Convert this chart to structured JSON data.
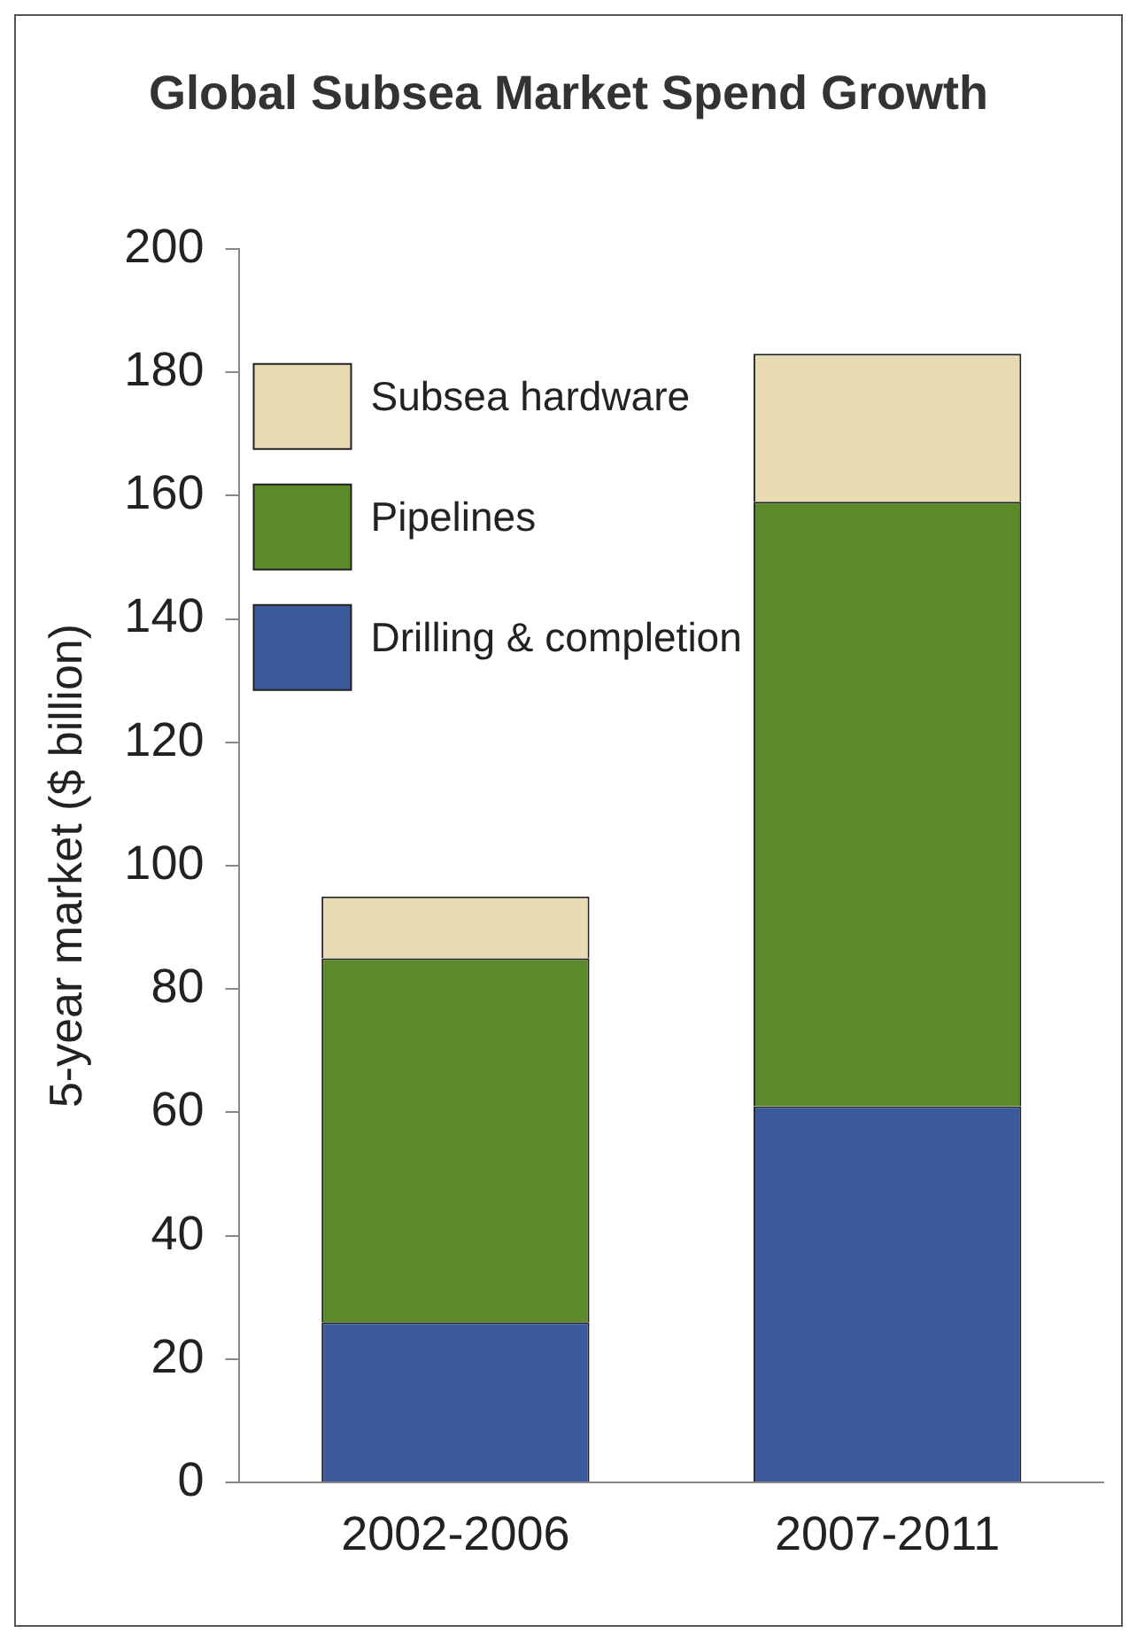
{
  "chart_data": {
    "type": "bar",
    "title": "Global Subsea Market Spend Growth",
    "ylabel": "5-year market ($ billion)",
    "categories": [
      "2002-2006",
      "2007-2011"
    ],
    "series": [
      {
        "name": "Drilling & completion",
        "color": "#3a5a9c",
        "values": [
          26,
          61
        ]
      },
      {
        "name": "Pipelines",
        "color": "#5c8a2a",
        "values": [
          59,
          98
        ]
      },
      {
        "name": "Subsea hardware",
        "color": "#e8dbb4",
        "values": [
          10,
          24
        ]
      }
    ],
    "stacked": true,
    "ylim": [
      0,
      200
    ],
    "yticks": [
      0,
      20,
      40,
      60,
      80,
      100,
      120,
      140,
      160,
      180,
      200
    ],
    "grid": false,
    "legend": "top left"
  }
}
